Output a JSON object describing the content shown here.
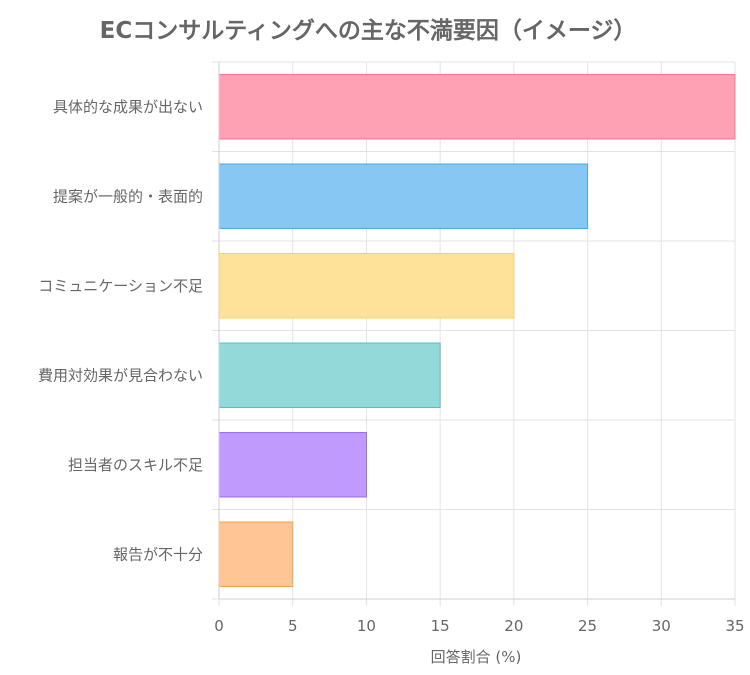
{
  "chart_data": {
    "type": "bar",
    "orientation": "horizontal",
    "title": "ECコンサルティングへの主な不満要因（イメージ）",
    "xlabel": "回答割合 (%)",
    "ylabel": "",
    "xlim": [
      0,
      35
    ],
    "x_ticks": [
      "0",
      "5",
      "10",
      "15",
      "20",
      "25",
      "30",
      "35"
    ],
    "grid": true,
    "categories": [
      "具体的な成果が出ない",
      "提案が一般的・表面的",
      "コミュニケーション不足",
      "費用対効果が見合わない",
      "担当者のスキル不足",
      "報告が不十分"
    ],
    "values": [
      35,
      25,
      20,
      15,
      10,
      5
    ],
    "bar_fill_colors": [
      "#ffa1b5",
      "#86c7f3",
      "#ffe29a",
      "#93d9d9",
      "#c09bfd",
      "#ffc594"
    ],
    "bar_border_colors": [
      "#ff7090",
      "#4aa8e8",
      "#ffcf5a",
      "#50bfbf",
      "#9966ff",
      "#ff9f40"
    ]
  }
}
